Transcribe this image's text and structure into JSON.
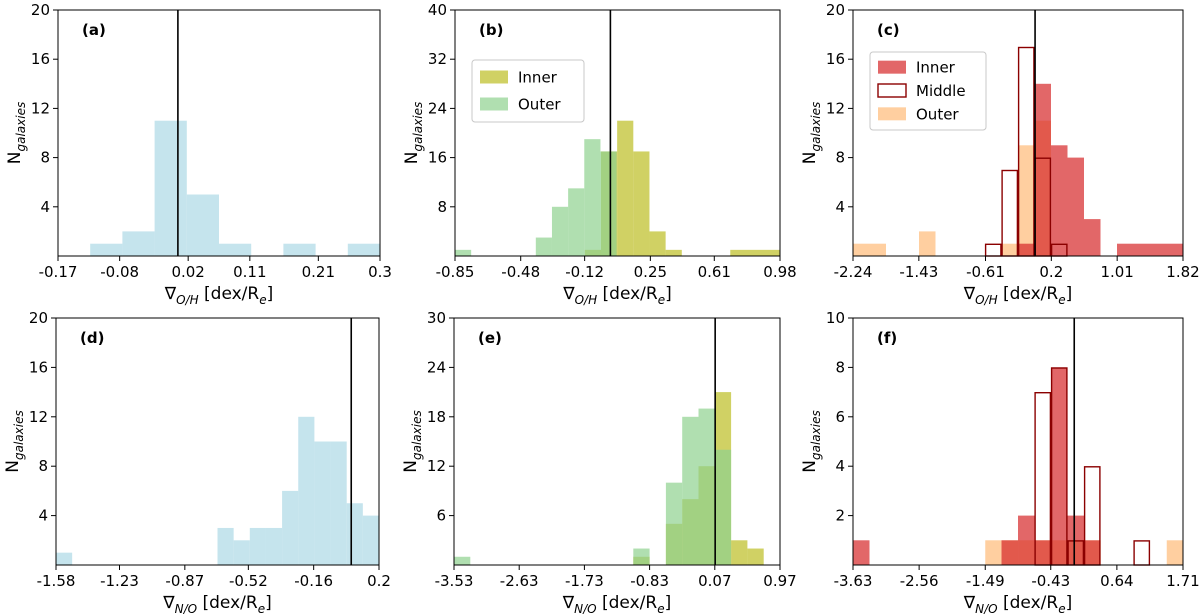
{
  "colors": {
    "blue": "#add8e6",
    "olive": "#bcbd22",
    "green": "#8fd18f",
    "red": "#d62728",
    "orange": "#ffbb78",
    "dark": "#8b0000",
    "line": "#000000"
  },
  "chart_data": [
    {
      "type": "bar",
      "panel_label": "(a)",
      "y_label": "N",
      "y_sub": "galaxies",
      "x_symbol": "∇",
      "x_sub": "O/H",
      "x_unit": " [dex/R",
      "x_unit_sub": "e",
      "x_unit_end": "]",
      "xlim": [
        -0.17,
        0.3
      ],
      "ylim": [
        0,
        20
      ],
      "xticks": [
        -0.17,
        -0.08,
        0.02,
        0.11,
        0.21,
        0.3
      ],
      "xtick_labels": [
        "-0.17",
        "-0.08",
        "0.02",
        "0.11",
        "0.21",
        "0.3"
      ],
      "yticks": [
        4,
        8,
        12,
        16,
        20
      ],
      "ytick_labels": [
        "4",
        "8",
        "12",
        "16",
        "20"
      ],
      "vline": 0.005,
      "legend": [],
      "series": [
        {
          "name": "All",
          "style": "fill",
          "color": "blue",
          "edges": [
            -0.17,
            -0.123,
            -0.076,
            -0.029,
            0.018,
            0.065,
            0.112,
            0.159,
            0.206,
            0.253,
            0.3
          ],
          "counts": [
            0,
            1,
            2,
            11,
            5,
            1,
            0,
            1,
            0,
            1
          ]
        }
      ]
    },
    {
      "type": "bar",
      "panel_label": "(b)",
      "y_label": "N",
      "y_sub": "galaxies",
      "x_symbol": "∇",
      "x_sub": "O/H",
      "x_unit": " [dex/R",
      "x_unit_sub": "e",
      "x_unit_end": "]",
      "xlim": [
        -0.85,
        0.98
      ],
      "ylim": [
        0,
        40
      ],
      "xticks": [
        -0.85,
        -0.48,
        -0.12,
        0.25,
        0.61,
        0.98
      ],
      "xtick_labels": [
        "-0.85",
        "-0.48",
        "-0.12",
        "0.25",
        "0.61",
        "0.98"
      ],
      "yticks": [
        8,
        16,
        24,
        32,
        40
      ],
      "ytick_labels": [
        "8",
        "16",
        "24",
        "32",
        "40"
      ],
      "vline": 0.025,
      "legend": [
        {
          "label": "Inner",
          "style": "fill",
          "color": "olive"
        },
        {
          "label": "Outer",
          "style": "fill",
          "color": "green"
        }
      ],
      "series": [
        {
          "name": "Inner",
          "style": "fill",
          "color": "olive",
          "edges": [
            -0.119,
            -0.028,
            0.063,
            0.154,
            0.245,
            0.336,
            0.427,
            0.518,
            0.609,
            0.7,
            0.98
          ],
          "counts": [
            1,
            17,
            22,
            17,
            4,
            1,
            0,
            0,
            0,
            1
          ]
        },
        {
          "name": "Outer",
          "style": "fill",
          "color": "green",
          "edges": [
            -0.85,
            -0.759,
            -0.668,
            -0.577,
            -0.486,
            -0.395,
            -0.304,
            -0.213,
            -0.122,
            -0.031,
            0.06
          ],
          "counts": [
            1,
            0,
            0,
            0,
            0,
            3,
            8,
            11,
            19,
            17
          ]
        }
      ]
    },
    {
      "type": "bar",
      "panel_label": "(c)",
      "y_label": "N",
      "y_sub": "galaxies",
      "x_symbol": "∇",
      "x_sub": "O/H",
      "x_unit": " [dex/R",
      "x_unit_sub": "e",
      "x_unit_end": "]",
      "xlim": [
        -2.24,
        1.82
      ],
      "ylim": [
        0,
        20
      ],
      "xticks": [
        -2.24,
        -1.43,
        -0.61,
        0.2,
        1.01,
        1.82
      ],
      "xtick_labels": [
        "-2.24",
        "-1.43",
        "-0.61",
        "0.2",
        "1.01",
        "1.82"
      ],
      "yticks": [
        4,
        8,
        12,
        16,
        20
      ],
      "ytick_labels": [
        "4",
        "8",
        "12",
        "16",
        "20"
      ],
      "vline": 0.0,
      "legend": [
        {
          "label": "Inner",
          "style": "fill",
          "color": "red"
        },
        {
          "label": "Middle",
          "style": "step",
          "color": "dark"
        },
        {
          "label": "Outer",
          "style": "fill",
          "color": "orange"
        }
      ],
      "series": [
        {
          "name": "Outer",
          "style": "fill",
          "color": "orange",
          "edges": [
            -2.24,
            -2.037,
            -1.834,
            -1.631,
            -1.428,
            -1.225,
            -1.022,
            -0.819,
            -0.616,
            -0.413,
            -0.21,
            -0.007,
            0.196
          ],
          "counts": [
            1,
            1,
            0,
            0,
            2,
            0,
            0,
            0,
            0,
            1,
            9,
            11
          ]
        },
        {
          "name": "Inner",
          "style": "fill",
          "color": "red",
          "edges": [
            -0.21,
            -0.007,
            0.196,
            0.399,
            0.602,
            0.805,
            1.008,
            1.211,
            1.414,
            1.617,
            1.82
          ],
          "counts": [
            1,
            14,
            9,
            8,
            3,
            0,
            1,
            1,
            1,
            1
          ]
        },
        {
          "name": "Middle",
          "style": "step",
          "color": "dark",
          "edges": [
            -0.616,
            -0.413,
            -0.21,
            -0.007,
            0.196,
            0.399
          ],
          "counts": [
            1,
            7,
            17,
            8,
            1
          ]
        }
      ]
    },
    {
      "type": "bar",
      "panel_label": "(d)",
      "y_label": "N",
      "y_sub": "galaxies",
      "x_symbol": "∇",
      "x_sub": "N/O",
      "x_unit": " [dex/R",
      "x_unit_sub": "e",
      "x_unit_end": "]",
      "xlim": [
        -1.58,
        0.2
      ],
      "ylim": [
        0,
        20
      ],
      "xticks": [
        -1.58,
        -1.23,
        -0.87,
        -0.52,
        -0.16,
        0.2
      ],
      "xtick_labels": [
        "-1.58",
        "-1.23",
        "-0.87",
        "-0.52",
        "-0.16",
        "0.2"
      ],
      "yticks": [
        4,
        8,
        12,
        16,
        20
      ],
      "ytick_labels": [
        "4",
        "8",
        "12",
        "16",
        "20"
      ],
      "vline": 0.047,
      "legend": [],
      "series": [
        {
          "name": "All",
          "style": "fill",
          "color": "blue",
          "edges": [
            -1.58,
            -1.491,
            -1.402,
            -1.313,
            -1.224,
            -1.135,
            -1.046,
            -0.957,
            -0.868,
            -0.779,
            -0.69,
            -0.601,
            -0.512,
            -0.423,
            -0.334,
            -0.245,
            -0.156,
            -0.067,
            0.022,
            0.111,
            0.2
          ],
          "counts": [
            1,
            0,
            0,
            0,
            0,
            0,
            0,
            0,
            0,
            0,
            3,
            2,
            3,
            3,
            6,
            12,
            10,
            10,
            5,
            4
          ]
        }
      ]
    },
    {
      "type": "bar",
      "panel_label": "(e)",
      "y_label": "N",
      "y_sub": "galaxies",
      "x_symbol": "∇",
      "x_sub": "N/O",
      "x_unit": " [dex/R",
      "x_unit_sub": "e",
      "x_unit_end": "]",
      "xlim": [
        -3.53,
        0.97
      ],
      "ylim": [
        0,
        30
      ],
      "xticks": [
        -3.53,
        -2.63,
        -1.73,
        -0.83,
        0.07,
        0.97
      ],
      "xtick_labels": [
        "-3.53",
        "-2.63",
        "-1.73",
        "-0.83",
        "0.07",
        "0.97"
      ],
      "yticks": [
        6,
        12,
        18,
        24,
        30
      ],
      "ytick_labels": [
        "6",
        "12",
        "18",
        "24",
        "30"
      ],
      "vline": 0.075,
      "legend": [],
      "series": [
        {
          "name": "Inner",
          "style": "fill",
          "color": "olive",
          "edges": [
            -1.28,
            -1.055,
            -0.83,
            -0.605,
            -0.38,
            -0.155,
            0.07,
            0.295,
            0.52,
            0.745,
            0.97
          ],
          "counts": [
            0,
            1,
            0,
            5,
            8,
            12,
            21,
            3,
            2,
            0
          ]
        },
        {
          "name": "Outer",
          "style": "fill",
          "color": "green",
          "edges": [
            -3.53,
            -3.305,
            -3.08,
            -2.855,
            -2.63,
            -2.405,
            -2.18,
            -1.955,
            -1.73,
            -1.505,
            -1.28,
            -1.055,
            -0.83,
            -0.605,
            -0.38,
            -0.155,
            0.07,
            0.295
          ],
          "counts": [
            1,
            0,
            0,
            0,
            0,
            0,
            0,
            0,
            0,
            0,
            0,
            2,
            0,
            10,
            18,
            19,
            14,
            1
          ]
        }
      ]
    },
    {
      "type": "bar",
      "panel_label": "(f)",
      "y_label": "N",
      "y_sub": "galaxies",
      "x_symbol": "∇",
      "x_sub": "N/O",
      "x_unit": " [dex/R",
      "x_unit_sub": "e",
      "x_unit_end": "]",
      "xlim": [
        -3.63,
        1.71
      ],
      "ylim": [
        0,
        10
      ],
      "xticks": [
        -3.63,
        -2.56,
        -1.49,
        -0.43,
        0.64,
        1.71
      ],
      "xtick_labels": [
        "-3.63",
        "-2.56",
        "-1.49",
        "-0.43",
        "0.64",
        "1.71"
      ],
      "yticks": [
        2,
        4,
        6,
        8,
        10
      ],
      "ytick_labels": [
        "2",
        "4",
        "6",
        "8",
        "10"
      ],
      "vline": -0.05,
      "legend": [],
      "series": [
        {
          "name": "Outer",
          "style": "fill",
          "color": "orange",
          "edges": [
            -1.49,
            -1.223,
            -0.956,
            -0.689,
            -0.422,
            -0.155,
            0.112,
            0.379,
            0.646,
            0.913,
            1.18,
            1.447,
            1.71
          ],
          "counts": [
            1,
            1,
            1,
            1,
            1,
            1,
            1,
            0,
            0,
            0,
            0,
            1
          ]
        },
        {
          "name": "Inner",
          "style": "fill",
          "color": "red",
          "edges": [
            -3.63,
            -3.363,
            -3.096,
            -2.829,
            -2.562,
            -2.295,
            -2.028,
            -1.761,
            -1.494,
            -1.227,
            -0.96,
            -0.693,
            -0.426,
            -0.159,
            0.108,
            0.375,
            0.642
          ],
          "counts": [
            1,
            0,
            0,
            0,
            0,
            0,
            0,
            0,
            0,
            1,
            2,
            1,
            8,
            2,
            1,
            0
          ]
        },
        {
          "name": "Middle",
          "style": "step",
          "color": "dark",
          "edges": [
            -0.693,
            -0.426,
            -0.159,
            0.108,
            0.375,
            0.642,
            0.909,
            1.176,
            1.443
          ],
          "counts": [
            7,
            8,
            1,
            4,
            0,
            0,
            1,
            0
          ]
        }
      ]
    }
  ]
}
